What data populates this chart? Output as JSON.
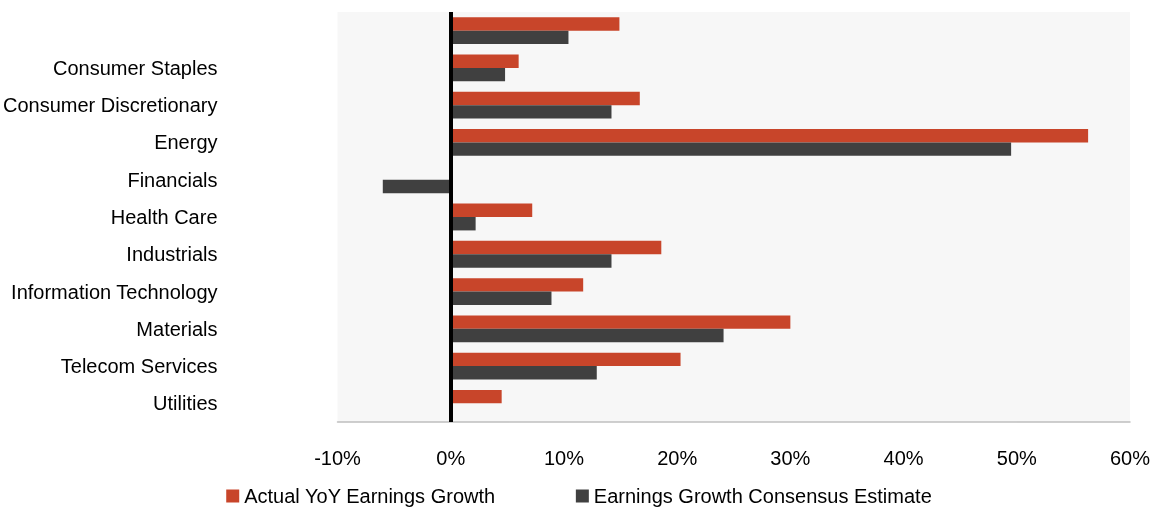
{
  "chart_data": {
    "type": "bar",
    "orientation": "horizontal",
    "categories": [
      null,
      "Consumer Staples",
      "Consumer Discretionary",
      "Energy",
      "Financials",
      "Health Care",
      "Industrials",
      "Information Technology",
      "Materials",
      "Telecom Services",
      "Utilities"
    ],
    "series": [
      {
        "name": "Actual YoY Earnings Growth",
        "color": "#c8452a",
        "values": [
          14.9,
          6.0,
          16.7,
          56.3,
          null,
          7.2,
          18.6,
          11.7,
          30.0,
          20.3,
          4.5
        ]
      },
      {
        "name": "Earnings Growth Consensus Estimate",
        "color": "#404040",
        "values": [
          10.4,
          4.8,
          14.2,
          49.5,
          -6.0,
          2.2,
          14.2,
          8.9,
          24.1,
          12.9,
          null
        ]
      }
    ],
    "xlim": [
      -10,
      60
    ],
    "xticks": [
      {
        "value": -10,
        "label": "-10%"
      },
      {
        "value": 0,
        "label": "0%"
      },
      {
        "value": 10,
        "label": "10%"
      },
      {
        "value": 20,
        "label": "20%"
      },
      {
        "value": 30,
        "label": "30%"
      },
      {
        "value": 40,
        "label": "40%"
      },
      {
        "value": 50,
        "label": "50%"
      },
      {
        "value": 60,
        "label": "60%"
      }
    ],
    "ref_lines": [
      {
        "axis": "x",
        "value": 0,
        "color": "#000000",
        "line_style": "solid"
      }
    ],
    "legend": "bottom"
  }
}
